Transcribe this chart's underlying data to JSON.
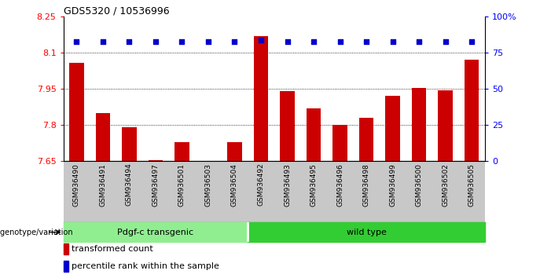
{
  "title": "GDS5320 / 10536996",
  "samples": [
    "GSM936490",
    "GSM936491",
    "GSM936494",
    "GSM936497",
    "GSM936501",
    "GSM936503",
    "GSM936504",
    "GSM936492",
    "GSM936493",
    "GSM936495",
    "GSM936496",
    "GSM936498",
    "GSM936499",
    "GSM936500",
    "GSM936502",
    "GSM936505"
  ],
  "bar_values": [
    8.06,
    7.85,
    7.79,
    7.655,
    7.73,
    7.645,
    7.73,
    8.17,
    7.94,
    7.87,
    7.8,
    7.83,
    7.92,
    7.955,
    7.945,
    8.07
  ],
  "percentile_values": [
    83,
    83,
    83,
    83,
    83,
    83,
    83,
    84,
    83,
    83,
    83,
    83,
    83,
    83,
    83,
    83
  ],
  "bar_color": "#cc0000",
  "dot_color": "#0000cc",
  "ymin": 7.65,
  "ymax": 8.25,
  "y2min": 0,
  "y2max": 100,
  "yticks": [
    7.65,
    7.8,
    7.95,
    8.1,
    8.25
  ],
  "ytick_labels": [
    "7.65",
    "7.8",
    "7.95",
    "8.1",
    "8.25"
  ],
  "y2ticks": [
    0,
    25,
    50,
    75,
    100
  ],
  "y2tick_labels": [
    "0",
    "25",
    "50",
    "75",
    "100%"
  ],
  "gridlines": [
    7.8,
    7.95,
    8.1
  ],
  "group1_label": "Pdgf-c transgenic",
  "group2_label": "wild type",
  "group1_count": 7,
  "group2_count": 9,
  "group1_color": "#90ee90",
  "group2_color": "#32cd32",
  "genotype_label": "genotype/variation",
  "legend1_label": "transformed count",
  "legend2_label": "percentile rank within the sample",
  "bg_color": "#c8c8c8",
  "plot_bg": "#ffffff"
}
